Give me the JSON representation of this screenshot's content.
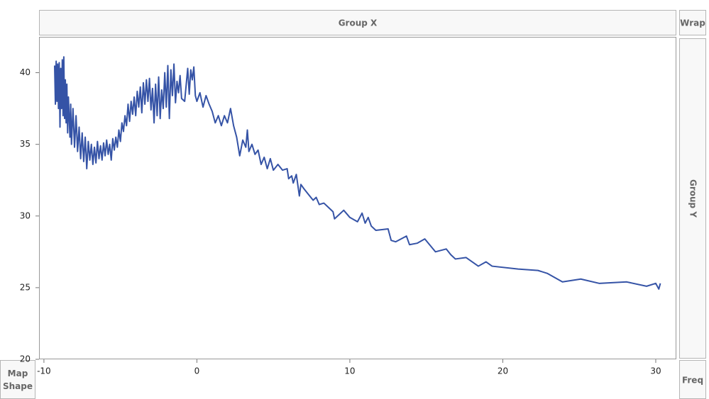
{
  "drop_zones": {
    "group_x": "Group X",
    "wrap": "Wrap",
    "group_y": "Group Y",
    "map_shape": "Map Shape",
    "freq": "Freq"
  },
  "chart_data": {
    "type": "line",
    "color": "#3553a6",
    "grid": false,
    "xlim": [
      -10.32,
      31.3
    ],
    "ylim": [
      20,
      42.5
    ],
    "xticks": [
      -10,
      0,
      10,
      20,
      30
    ],
    "yticks": [
      20,
      25,
      30,
      35,
      40
    ],
    "x": [
      -9.3,
      -9.25,
      -9.2,
      -9.15,
      -9.1,
      -9.05,
      -9.0,
      -8.95,
      -8.9,
      -8.85,
      -8.8,
      -8.75,
      -8.7,
      -8.65,
      -8.6,
      -8.55,
      -8.5,
      -8.45,
      -8.4,
      -8.3,
      -8.25,
      -8.2,
      -8.1,
      -8.0,
      -7.9,
      -7.8,
      -7.7,
      -7.6,
      -7.5,
      -7.4,
      -7.3,
      -7.2,
      -7.1,
      -7.0,
      -6.9,
      -6.8,
      -6.7,
      -6.6,
      -6.5,
      -6.4,
      -6.3,
      -6.2,
      -6.1,
      -6.0,
      -5.9,
      -5.8,
      -5.7,
      -5.6,
      -5.5,
      -5.4,
      -5.3,
      -5.2,
      -5.1,
      -5.0,
      -4.9,
      -4.8,
      -4.7,
      -4.6,
      -4.5,
      -4.4,
      -4.3,
      -4.2,
      -4.1,
      -4.0,
      -3.9,
      -3.8,
      -3.7,
      -3.6,
      -3.5,
      -3.4,
      -3.3,
      -3.2,
      -3.1,
      -3.0,
      -2.9,
      -2.8,
      -2.7,
      -2.6,
      -2.5,
      -2.4,
      -2.3,
      -2.2,
      -2.1,
      -2.0,
      -1.9,
      -1.8,
      -1.7,
      -1.6,
      -1.5,
      -1.4,
      -1.3,
      -1.2,
      -1.1,
      -1.0,
      -0.8,
      -0.6,
      -0.5,
      -0.4,
      -0.3,
      -0.2,
      -0.1,
      0.0,
      0.2,
      0.4,
      0.6,
      0.8,
      1.0,
      1.2,
      1.4,
      1.6,
      1.8,
      2.0,
      2.2,
      2.4,
      2.6,
      2.8,
      3.0,
      3.2,
      3.3,
      3.4,
      3.6,
      3.8,
      4.0,
      4.2,
      4.4,
      4.6,
      4.8,
      5.0,
      5.3,
      5.6,
      5.9,
      6.0,
      6.2,
      6.3,
      6.5,
      6.7,
      6.8,
      7.0,
      7.3,
      7.6,
      7.8,
      8.0,
      8.3,
      8.6,
      8.9,
      9.0,
      9.2,
      9.6,
      10.0,
      10.5,
      10.8,
      11.0,
      11.2,
      11.4,
      11.7,
      12.5,
      12.7,
      13.0,
      13.7,
      13.9,
      14.4,
      14.9,
      15.6,
      16.3,
      16.6,
      16.9,
      17.6,
      18.4,
      18.9,
      19.3,
      21.0,
      22.3,
      22.9,
      23.9,
      25.1,
      26.3,
      28.1,
      29.4,
      30.0,
      30.2,
      30.3
    ],
    "values": [
      40.5,
      37.8,
      40.8,
      38.0,
      40.6,
      37.5,
      40.7,
      36.2,
      40.3,
      37.5,
      40.9,
      37.0,
      41.1,
      36.8,
      39.5,
      36.5,
      39.2,
      35.8,
      38.3,
      35.5,
      37.8,
      35.0,
      37.5,
      34.8,
      37.0,
      34.5,
      36.2,
      34.0,
      35.8,
      33.8,
      35.5,
      33.3,
      35.2,
      33.9,
      35.0,
      33.6,
      34.8,
      33.7,
      35.2,
      34.0,
      34.9,
      33.9,
      35.1,
      34.2,
      35.3,
      34.3,
      35.0,
      33.9,
      35.4,
      34.6,
      35.5,
      34.8,
      36.0,
      35.2,
      36.5,
      35.9,
      37.0,
      36.3,
      37.8,
      36.6,
      38.0,
      37.1,
      38.3,
      37.0,
      38.7,
      37.6,
      39.0,
      37.2,
      39.3,
      37.8,
      39.5,
      38.0,
      39.6,
      37.4,
      38.9,
      36.5,
      39.2,
      37.0,
      39.7,
      36.8,
      38.8,
      37.5,
      40.0,
      37.6,
      40.5,
      36.8,
      40.2,
      38.4,
      40.6,
      37.9,
      39.4,
      38.6,
      39.8,
      38.2,
      38.0,
      40.3,
      38.5,
      40.2,
      39.5,
      40.4,
      38.4,
      38.0,
      38.6,
      37.6,
      38.4,
      37.8,
      37.3,
      36.5,
      37.0,
      36.3,
      37.0,
      36.5,
      37.5,
      36.3,
      35.5,
      34.2,
      35.3,
      34.8,
      36.0,
      34.5,
      35.0,
      34.3,
      34.6,
      33.6,
      34.1,
      33.3,
      34.0,
      33.2,
      33.6,
      33.2,
      33.3,
      32.6,
      32.8,
      32.3,
      32.9,
      31.4,
      32.2,
      31.9,
      31.5,
      31.1,
      31.3,
      30.8,
      30.9,
      30.6,
      30.3,
      29.8,
      30.0,
      30.4,
      29.9,
      29.6,
      30.2,
      29.5,
      29.9,
      29.3,
      29.0,
      29.1,
      28.3,
      28.2,
      28.6,
      28.0,
      28.1,
      28.4,
      27.5,
      27.7,
      27.3,
      27.0,
      27.1,
      26.5,
      26.8,
      26.5,
      26.3,
      26.2,
      26.0,
      25.4,
      25.6,
      25.3,
      25.4,
      25.1,
      25.3,
      24.9,
      25.3
    ]
  }
}
